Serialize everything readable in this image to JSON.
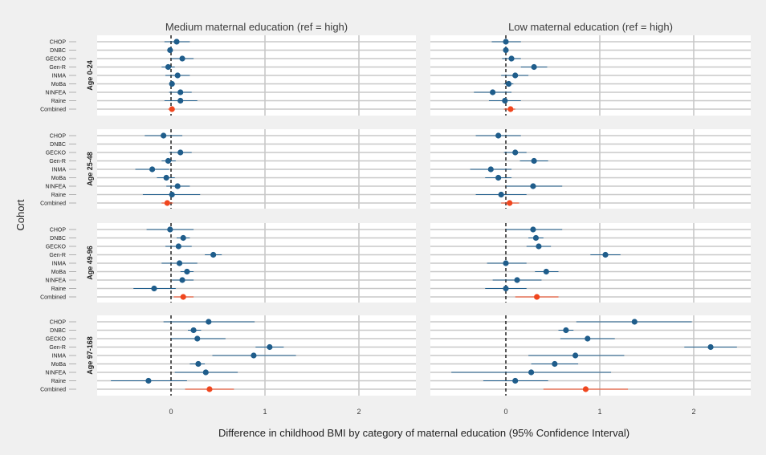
{
  "chart_data": {
    "type": "forest",
    "xlabel": "Difference in childhood BMI by category of maternal education (95% Confidence Interval)",
    "ylabel": "Cohort",
    "xlim": [
      -0.85,
      2.6
    ],
    "xticks": [
      0,
      1,
      2
    ],
    "reference_line": 0,
    "colors": {
      "cohort": "#1f5d8b",
      "combined": "#f0461e",
      "grid": "#c8c8c8",
      "background": "#f0f0f0",
      "panel_bg": "#ffffff"
    },
    "columns": [
      {
        "title": "Medium maternal education (ref = high)"
      },
      {
        "title": "Low maternal education (ref = high)"
      }
    ],
    "age_groups": [
      "Age 0-24",
      "Age 25-48",
      "Age 49-96",
      "Age 97-168"
    ],
    "cohorts": [
      "CHOP",
      "DNBC",
      "GECKO",
      "Gen-R",
      "INMA",
      "MoBa",
      "NINFEA",
      "Raine",
      "Combined"
    ],
    "panels": [
      {
        "column": 0,
        "age": 0,
        "points": [
          {
            "est": 0.06,
            "lo": -0.07,
            "hi": 0.2
          },
          {
            "est": -0.01,
            "lo": -0.02,
            "hi": 0.0
          },
          {
            "est": 0.12,
            "lo": 0.0,
            "hi": 0.24
          },
          {
            "est": -0.03,
            "lo": -0.1,
            "hi": 0.04
          },
          {
            "est": 0.07,
            "lo": -0.06,
            "hi": 0.2
          },
          {
            "est": 0.01,
            "lo": -0.02,
            "hi": 0.04
          },
          {
            "est": 0.1,
            "lo": -0.02,
            "hi": 0.22
          },
          {
            "est": 0.1,
            "lo": -0.07,
            "hi": 0.28
          },
          {
            "est": 0.01,
            "lo": -0.03,
            "hi": 0.04
          }
        ]
      },
      {
        "column": 1,
        "age": 0,
        "points": [
          {
            "est": 0.0,
            "lo": -0.15,
            "hi": 0.16
          },
          {
            "est": 0.0,
            "lo": -0.02,
            "hi": 0.02
          },
          {
            "est": 0.06,
            "lo": -0.04,
            "hi": 0.16
          },
          {
            "est": 0.3,
            "lo": 0.16,
            "hi": 0.44
          },
          {
            "est": 0.1,
            "lo": -0.05,
            "hi": 0.24
          },
          {
            "est": 0.03,
            "lo": -0.02,
            "hi": 0.08
          },
          {
            "est": -0.14,
            "lo": -0.34,
            "hi": 0.06
          },
          {
            "est": -0.01,
            "lo": -0.18,
            "hi": 0.16
          },
          {
            "est": 0.05,
            "lo": -0.02,
            "hi": 0.1
          }
        ]
      },
      {
        "column": 0,
        "age": 1,
        "points": [
          {
            "est": -0.08,
            "lo": -0.28,
            "hi": 0.12
          },
          {
            "est": null,
            "lo": null,
            "hi": null
          },
          {
            "est": 0.1,
            "lo": -0.02,
            "hi": 0.22
          },
          {
            "est": -0.03,
            "lo": -0.1,
            "hi": 0.05
          },
          {
            "est": -0.2,
            "lo": -0.38,
            "hi": -0.02
          },
          {
            "est": -0.05,
            "lo": -0.15,
            "hi": 0.04
          },
          {
            "est": 0.07,
            "lo": -0.05,
            "hi": 0.2
          },
          {
            "est": 0.01,
            "lo": -0.3,
            "hi": 0.31
          },
          {
            "est": -0.04,
            "lo": -0.1,
            "hi": 0.02
          }
        ]
      },
      {
        "column": 1,
        "age": 1,
        "points": [
          {
            "est": -0.08,
            "lo": -0.32,
            "hi": 0.16
          },
          {
            "est": null,
            "lo": null,
            "hi": null
          },
          {
            "est": 0.1,
            "lo": -0.02,
            "hi": 0.22
          },
          {
            "est": 0.3,
            "lo": 0.15,
            "hi": 0.45
          },
          {
            "est": -0.16,
            "lo": -0.38,
            "hi": 0.06
          },
          {
            "est": -0.08,
            "lo": -0.22,
            "hi": 0.06
          },
          {
            "est": 0.29,
            "lo": 0.0,
            "hi": 0.6
          },
          {
            "est": -0.05,
            "lo": -0.32,
            "hi": 0.22
          },
          {
            "est": 0.04,
            "lo": -0.05,
            "hi": 0.14
          }
        ]
      },
      {
        "column": 0,
        "age": 2,
        "points": [
          {
            "est": -0.01,
            "lo": -0.26,
            "hi": 0.24
          },
          {
            "est": 0.13,
            "lo": 0.06,
            "hi": 0.2
          },
          {
            "est": 0.08,
            "lo": -0.06,
            "hi": 0.22
          },
          {
            "est": 0.45,
            "lo": 0.36,
            "hi": 0.54
          },
          {
            "est": 0.09,
            "lo": -0.1,
            "hi": 0.28
          },
          {
            "est": 0.17,
            "lo": 0.1,
            "hi": 0.24
          },
          {
            "est": 0.12,
            "lo": 0.01,
            "hi": 0.24
          },
          {
            "est": -0.18,
            "lo": -0.4,
            "hi": 0.05
          },
          {
            "est": 0.13,
            "lo": 0.03,
            "hi": 0.24
          }
        ]
      },
      {
        "column": 1,
        "age": 2,
        "points": [
          {
            "est": 0.29,
            "lo": 0.0,
            "hi": 0.6
          },
          {
            "est": 0.32,
            "lo": 0.24,
            "hi": 0.4
          },
          {
            "est": 0.35,
            "lo": 0.22,
            "hi": 0.48
          },
          {
            "est": 1.06,
            "lo": 0.9,
            "hi": 1.22
          },
          {
            "est": 0.0,
            "lo": -0.2,
            "hi": 0.22
          },
          {
            "est": 0.43,
            "lo": 0.31,
            "hi": 0.56
          },
          {
            "est": 0.12,
            "lo": -0.14,
            "hi": 0.38
          },
          {
            "est": 0.0,
            "lo": -0.22,
            "hi": 0.22
          },
          {
            "est": 0.33,
            "lo": 0.1,
            "hi": 0.56
          }
        ]
      },
      {
        "column": 0,
        "age": 3,
        "points": [
          {
            "est": 0.4,
            "lo": -0.08,
            "hi": 0.89
          },
          {
            "est": 0.24,
            "lo": 0.18,
            "hi": 0.32
          },
          {
            "est": 0.28,
            "lo": 0.0,
            "hi": 0.58
          },
          {
            "est": 1.05,
            "lo": 0.9,
            "hi": 1.2
          },
          {
            "est": 0.88,
            "lo": 0.44,
            "hi": 1.33
          },
          {
            "est": 0.29,
            "lo": 0.2,
            "hi": 0.36
          },
          {
            "est": 0.37,
            "lo": 0.04,
            "hi": 0.71
          },
          {
            "est": -0.24,
            "lo": -0.64,
            "hi": 0.17
          },
          {
            "est": 0.41,
            "lo": 0.15,
            "hi": 0.67
          }
        ]
      },
      {
        "column": 1,
        "age": 3,
        "points": [
          {
            "est": 1.37,
            "lo": 0.75,
            "hi": 1.98
          },
          {
            "est": 0.64,
            "lo": 0.56,
            "hi": 0.72
          },
          {
            "est": 0.87,
            "lo": 0.58,
            "hi": 1.16
          },
          {
            "est": 2.18,
            "lo": 1.9,
            "hi": 2.46
          },
          {
            "est": 0.74,
            "lo": 0.24,
            "hi": 1.26
          },
          {
            "est": 0.52,
            "lo": 0.27,
            "hi": 0.77
          },
          {
            "est": 0.27,
            "lo": -0.58,
            "hi": 1.12
          },
          {
            "est": 0.1,
            "lo": -0.24,
            "hi": 0.45
          },
          {
            "est": 0.85,
            "lo": 0.4,
            "hi": 1.3
          }
        ]
      }
    ]
  }
}
